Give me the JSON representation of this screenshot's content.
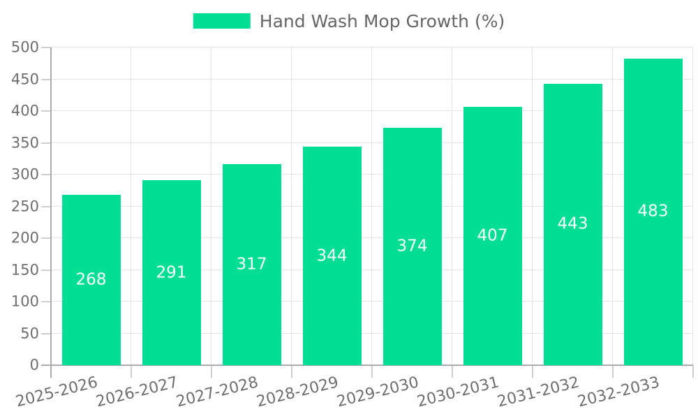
{
  "chart_data": {
    "type": "bar",
    "title": "",
    "legend_position": "top-center",
    "categories": [
      "2025-2026",
      "2026-2027",
      "2027-2028",
      "2028-2029",
      "2029-2030",
      "2030-2031",
      "2031-2032",
      "2032-2033"
    ],
    "series": [
      {
        "name": "Hand Wash Mop Growth (%)",
        "values": [
          268,
          291,
          317,
          344,
          374,
          407,
          443,
          483
        ]
      }
    ],
    "value_labels": [
      "268",
      "291",
      "317",
      "344",
      "374",
      "407",
      "443",
      "483"
    ],
    "xlabel": "",
    "ylabel": "",
    "ylim": [
      0,
      500
    ],
    "yticks": [
      0,
      50,
      100,
      150,
      200,
      250,
      300,
      350,
      400,
      450,
      500
    ],
    "grid": "both",
    "colors": {
      "bar": "#00DE93",
      "value_label": "#ffffff",
      "tick_text": "#6e6e6e",
      "legend_text": "#666666",
      "grid": "#e4e4e4",
      "axis": "#ababab",
      "tick": "#cfcfcf"
    }
  }
}
